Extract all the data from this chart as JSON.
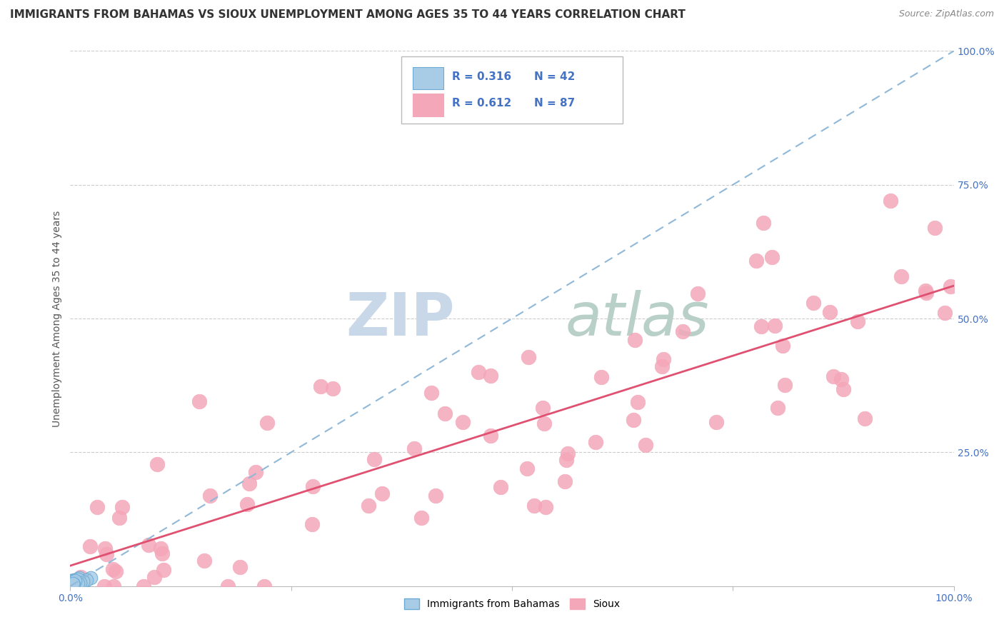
{
  "title": "IMMIGRANTS FROM BAHAMAS VS SIOUX UNEMPLOYMENT AMONG AGES 35 TO 44 YEARS CORRELATION CHART",
  "source": "Source: ZipAtlas.com",
  "ylabel": "Unemployment Among Ages 35 to 44 years",
  "legend_label1": "Immigrants from Bahamas",
  "legend_label2": "Sioux",
  "r1": 0.316,
  "n1": 42,
  "r2": 0.612,
  "n2": 87,
  "color1": "#a8cce6",
  "color1_edge": "#6aaad4",
  "color2": "#f4a7b9",
  "color2_edge": "#f4a7b9",
  "line1_color": "#90b8d8",
  "line2_color": "#e05070",
  "tick_color": "#4472c4",
  "title_color": "#333333",
  "source_color": "#888888",
  "ylabel_color": "#555555",
  "grid_color": "#cccccc",
  "watermark_zip_color": "#c8d8e8",
  "watermark_atlas_color": "#b8d0c8",
  "background_color": "#ffffff",
  "title_fontsize": 11,
  "source_fontsize": 9,
  "tick_fontsize": 10,
  "ylabel_fontsize": 10,
  "legend_fontsize": 11,
  "watermark_fontsize": 60
}
